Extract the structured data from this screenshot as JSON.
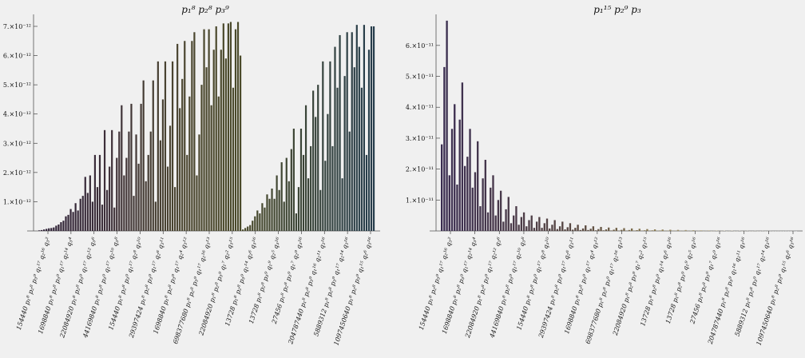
{
  "chart_data": [
    {
      "type": "bar",
      "title": "p₁⁸ p₂⁸ p₃⁹",
      "xlabel": "",
      "ylabel": "",
      "ylim": [
        0,
        7.3e-12
      ],
      "yticks": [
        "1.×10⁻¹²",
        "2.×10⁻¹²",
        "3.×10⁻¹²",
        "4.×10⁻¹²",
        "5.×10⁻¹²",
        "6.×10⁻¹²",
        "7.×10⁻¹²"
      ],
      "ytick_values": [
        1e-12,
        2e-12,
        3e-12,
        4e-12,
        5e-12,
        6e-12,
        7e-12
      ],
      "tick_labels": [
        "154440 p₁⁸ p₂⁸ p₃⁹ q₁¹⁷ q₂¹⁶ q₃²",
        "1698840 p₁⁸ p₂⁸ p₃⁹ q₁¹⁷ q₂¹⁴ q₃⁴",
        "22084920 p₁⁸ p₂⁸ p₃⁹ q₁¹⁷ q₂¹² q₃⁶",
        "44169840 p₁⁸ p₂⁸ p₃⁹ q₁¹⁷ q₂¹⁰ q₃⁸",
        "154440 p₁⁸ p₂⁸ p₃⁹ q₁¹⁷ q₂⁸ q₃¹⁰",
        "29397424 p₁⁸ p₂⁸ p₃⁹ q₁¹⁷ q₂⁶ q₃¹¹",
        "1698840 p₁⁸ p₂⁸ p₃⁹ q₁¹⁷ q₂⁴ q₃¹²",
        "698377680 p₁⁸ p₂⁸ p₃⁹ q₁¹⁷ q₂¹⁶ q₃¹³",
        "22084920 p₁⁸ p₂⁸ p₃⁹ q₁⁷ q₂² q₃¹⁵",
        "13728 p₁⁸ p₂⁸ p₃⁹ q₁¹⁴ q₂⁶ q₃¹⁶",
        "13728 p₁⁸ p₂⁸ p₃⁹ q₁⁹ q₂⁵ q₃¹⁶",
        "27456 p₁⁸ p₂⁸ p₃⁹ q₁⁷ q₂⁹ q₃¹⁶",
        "204787440 p₁⁸ p₂⁸ p₃⁹ q₁¹⁶ q₂¹¹ q₃¹⁶",
        "5889312 p₁⁸ p₂⁸ p₃⁹ q₁¹⁷ q₂¹⁴ q₃¹⁶",
        "1097450640 p₁⁸ p₂⁸ p₃⁹ q₁¹⁵ q₂⁶ q₃¹⁶"
      ],
      "values": [
        0.02,
        0.03,
        0.05,
        0.07,
        0.09,
        0.1,
        0.12,
        0.18,
        0.22,
        0.3,
        0.35,
        0.5,
        0.55,
        0.75,
        0.65,
        0.95,
        0.7,
        1.1,
        1.2,
        1.85,
        1.3,
        1.9,
        1.0,
        2.6,
        1.5,
        2.6,
        0.9,
        3.45,
        1.4,
        2.2,
        3.45,
        0.8,
        2.5,
        3.4,
        4.3,
        1.9,
        2.5,
        3.4,
        4.35,
        1.2,
        3.3,
        2.3,
        4.35,
        5.15,
        1.7,
        2.6,
        3.4,
        5.15,
        1.0,
        5.8,
        3.1,
        4.5,
        5.8,
        2.2,
        3.6,
        5.8,
        1.5,
        6.4,
        4.2,
        5.2,
        6.5,
        2.6,
        4.6,
        6.5,
        6.8,
        1.9,
        3.3,
        5.0,
        6.9,
        5.6,
        6.9,
        4.3,
        6.2,
        7.0,
        4.6,
        6.2,
        7.1,
        5.9,
        7.1,
        7.15,
        4.9,
        6.9,
        7.15,
        6.0,
        0.05,
        0.1,
        0.15,
        0.2,
        0.35,
        0.5,
        0.7,
        0.6,
        0.95,
        0.8,
        1.25,
        1.1,
        1.45,
        1.1,
        1.9,
        1.4,
        2.35,
        1.0,
        2.5,
        1.7,
        2.8,
        3.5,
        0.6,
        1.5,
        3.5,
        2.6,
        4.3,
        1.8,
        2.9,
        4.8,
        3.9,
        5.0,
        1.4,
        5.8,
        2.4,
        4.0,
        5.8,
        2.9,
        6.3,
        4.9,
        6.7,
        1.8,
        5.3,
        6.8,
        3.4,
        6.8,
        5.6,
        7.05,
        6.3,
        4.9,
        7.05,
        2.6,
        6.2,
        7.0,
        7.0
      ]
    },
    {
      "type": "bar",
      "title": "p₁¹⁵ p₂⁹ p₃",
      "xlabel": "",
      "ylabel": "",
      "ylim": [
        0,
        6.9e-11
      ],
      "yticks": [
        "1.×10⁻¹¹",
        "2.×10⁻¹¹",
        "3.×10⁻¹¹",
        "4.×10⁻¹¹",
        "5.×10⁻¹¹",
        "6.×10⁻¹¹"
      ],
      "ytick_values": [
        1e-11,
        2e-11,
        3e-11,
        4e-11,
        5e-11,
        6e-11
      ],
      "tick_labels": [
        "154440 p₁⁸ p₂⁸ p₃⁹ q₁¹⁷ q₂¹⁶ q₃²",
        "1698840 p₁⁸ p₂⁸ p₃⁹ q₁¹⁷ q₂¹⁴ q₃⁴",
        "22084920 p₁⁸ p₂⁸ p₃⁹ q₁¹⁷ q₂¹² q₃⁶",
        "44169840 p₁⁸ p₂⁸ p₃⁹ q₁¹⁷ q₂¹⁰ q₃⁸",
        "154440 p₁⁸ p₂⁸ p₃⁹ q₁¹⁷ q₂⁸ q₃¹⁰",
        "29397424 p₁⁸ p₂⁸ p₃⁹ q₁¹⁷ q₂⁶ q₃¹¹",
        "1698840 p₁⁸ p₂⁸ p₃⁹ q₁¹⁷ q₂⁴ q₃¹²",
        "698377680 p₁⁸ p₂⁸ p₃⁹ q₁¹⁷ q₂¹⁶ q₃¹³",
        "22084920 p₁⁸ p₂⁸ p₃⁹ q₁⁷ q₂² q₃¹⁵",
        "13728 p₁⁸ p₂⁸ p₃⁹ q₁¹⁴ q₂⁶ q₃¹⁶",
        "13728 p₁⁸ p₂⁸ p₃⁹ q₁⁹ q₂⁵ q₃¹⁶",
        "27456 p₁⁸ p₂⁸ p₃⁹ q₁⁷ q₂⁹ q₃¹⁶",
        "204787440 p₁⁸ p₂⁸ p₃⁹ q₁¹⁶ q₂¹¹ q₃¹⁶",
        "5889312 p₁⁸ p₂⁸ p₃⁹ q₁¹⁷ q₂¹⁴ q₃¹⁶",
        "1097450640 p₁⁸ p₂⁸ p₃⁹ q₁¹⁵ q₂⁶ q₃¹⁶"
      ],
      "values": [
        2.8,
        5.3,
        6.8,
        1.8,
        3.3,
        4.1,
        1.5,
        3.6,
        4.8,
        2.1,
        2.4,
        3.3,
        1.4,
        1.9,
        2.9,
        0.8,
        1.7,
        2.3,
        0.6,
        1.4,
        1.8,
        0.5,
        1.0,
        1.3,
        0.3,
        0.7,
        1.1,
        0.25,
        0.5,
        0.8,
        0.2,
        0.45,
        0.6,
        0.15,
        0.35,
        0.5,
        0.1,
        0.3,
        0.45,
        0.1,
        0.25,
        0.4,
        0.08,
        0.2,
        0.35,
        0.06,
        0.15,
        0.3,
        0.05,
        0.12,
        0.25,
        0.04,
        0.1,
        0.2,
        0.03,
        0.08,
        0.18,
        0.03,
        0.07,
        0.15,
        0.02,
        0.06,
        0.13,
        0.02,
        0.05,
        0.11,
        0.015,
        0.04,
        0.1,
        0.01,
        0.035,
        0.09,
        0.01,
        0.03,
        0.08,
        0.01,
        0.025,
        0.07,
        0.008,
        0.02,
        0.06,
        0.006,
        0.018,
        0.05,
        0.005,
        0.015,
        0.045,
        0.004,
        0.012,
        0.04,
        0.003,
        0.01,
        0.035,
        0.003,
        0.008,
        0.03,
        0.002,
        0.007,
        0.025,
        0.002,
        0.006,
        0.02,
        0.002,
        0.005,
        0.018,
        0.001,
        0.004,
        0.015,
        0.001,
        0.003,
        0.012,
        0.001,
        0.003,
        0.01,
        0.001,
        0.002,
        0.008,
        0.001,
        0.002,
        0.006,
        0.001,
        0.001,
        0.005,
        0.001,
        0.001,
        0.004,
        0.001,
        0.001,
        0.003,
        0.001,
        0.001,
        0.002,
        0.001,
        0.001,
        0.002,
        0.0008,
        0.0008,
        0.0015,
        0.0005
      ]
    }
  ]
}
